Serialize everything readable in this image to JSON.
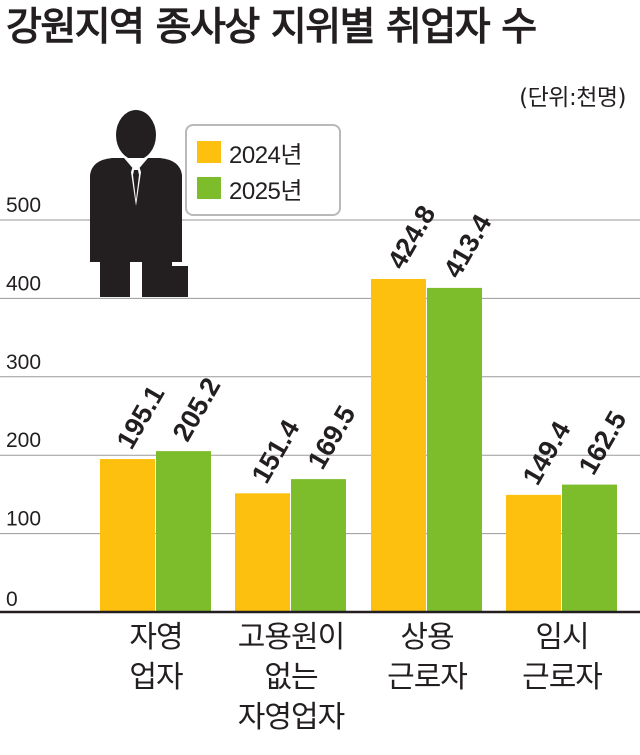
{
  "chart_data": {
    "type": "bar",
    "title": "강원지역 종사상 지위별 취업자 수",
    "unit": "(단위:천명)",
    "categories": [
      [
        "자영",
        "업자"
      ],
      [
        "고용원이",
        "없는",
        "자영업자"
      ],
      [
        "상용",
        "근로자"
      ],
      [
        "임시",
        "근로자"
      ]
    ],
    "series": [
      {
        "name": "2024년",
        "color": "#fdc00f",
        "values": [
          195.1,
          151.4,
          424.8,
          149.4
        ]
      },
      {
        "name": "2025년",
        "color": "#7dbd2c",
        "values": [
          205.2,
          169.5,
          413.4,
          162.5
        ]
      }
    ],
    "yticks": [
      "0",
      "100",
      "200",
      "300",
      "400",
      "500"
    ],
    "ylim": [
      0,
      500
    ],
    "grid": true,
    "legend_position": "top-left"
  }
}
